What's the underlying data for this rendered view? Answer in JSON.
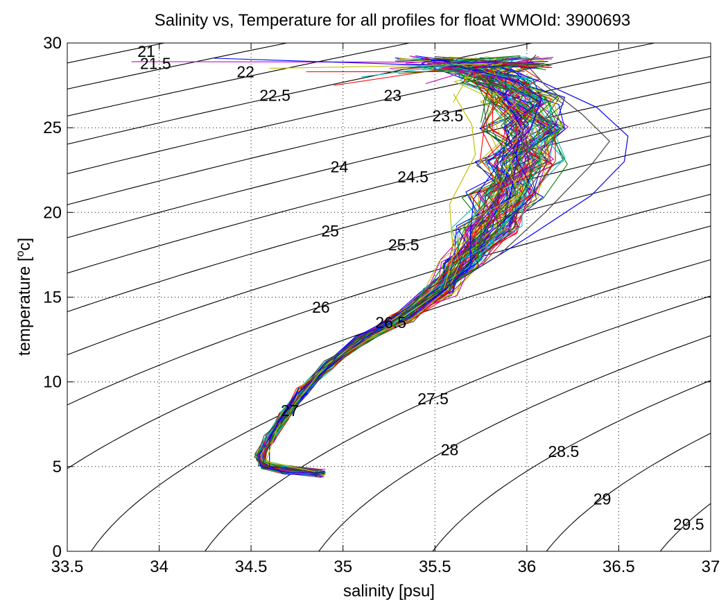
{
  "chart_data": {
    "type": "line",
    "title": "Salinity vs, Temperature for all profiles for float WMOId: 3900693",
    "xlabel": "salinity [psu]",
    "ylabel": "temperature [",
    "ylabel_sup": "o",
    "ylabel_unit": "c]",
    "xlim": [
      33.5,
      37
    ],
    "ylim": [
      0,
      30
    ],
    "x_ticks": [
      33.5,
      34,
      34.5,
      35,
      35.5,
      36,
      36.5,
      37
    ],
    "x_tick_labels": [
      "33.5",
      "34",
      "34.5",
      "35",
      "35.5",
      "36",
      "36.5",
      "37"
    ],
    "y_ticks": [
      0,
      5,
      10,
      15,
      20,
      25,
      30
    ],
    "y_tick_labels": [
      "0",
      "5",
      "10",
      "15",
      "20",
      "25",
      "30"
    ],
    "grid": true,
    "grid_style": "dotted",
    "isopycnal_color": "#000000",
    "isopycnals": [
      {
        "label": "21",
        "sigma": 21,
        "label_s": 33.93,
        "label_t": 29.5
      },
      {
        "label": "21.5",
        "sigma": 21.5,
        "label_s": 33.98,
        "label_t": 28.8
      },
      {
        "label": "22",
        "sigma": 22,
        "label_s": 34.47,
        "label_t": 28.3
      },
      {
        "label": "22.5",
        "sigma": 22.5,
        "label_s": 34.63,
        "label_t": 26.9
      },
      {
        "label": "23",
        "sigma": 23,
        "label_s": 35.27,
        "label_t": 26.9
      },
      {
        "label": "23.5",
        "sigma": 23.5,
        "label_s": 35.57,
        "label_t": 25.7
      },
      {
        "label": "24",
        "sigma": 24,
        "label_s": 34.98,
        "label_t": 22.7
      },
      {
        "label": "24.5",
        "sigma": 24.5,
        "label_s": 35.38,
        "label_t": 22.1
      },
      {
        "label": "25",
        "sigma": 25,
        "label_s": 34.93,
        "label_t": 18.9
      },
      {
        "label": "25.5",
        "sigma": 25.5,
        "label_s": 35.33,
        "label_t": 18.1
      },
      {
        "label": "26",
        "sigma": 26,
        "label_s": 34.88,
        "label_t": 14.4
      },
      {
        "label": "26.5",
        "sigma": 26.5,
        "label_s": 35.26,
        "label_t": 13.5
      },
      {
        "label": "27",
        "sigma": 27,
        "label_s": 34.71,
        "label_t": 8.3
      },
      {
        "label": "27.5",
        "sigma": 27.5,
        "label_s": 35.49,
        "label_t": 9.0
      },
      {
        "label": "28",
        "sigma": 28,
        "label_s": 35.58,
        "label_t": 6.0
      },
      {
        "label": "28.5",
        "sigma": 28.5,
        "label_s": 36.2,
        "label_t": 5.9
      },
      {
        "label": "29",
        "sigma": 29,
        "label_s": 36.41,
        "label_t": 3.1
      },
      {
        "label": "29.5",
        "sigma": 29.5,
        "label_s": 36.88,
        "label_t": 1.6
      }
    ],
    "profile_colors": [
      "#0000ff",
      "#008000",
      "#ff0000",
      "#00bfbf",
      "#bf00bf",
      "#bfbf00",
      "#404040"
    ],
    "profile_count": 100,
    "profile_spine": [
      {
        "s": 34.88,
        "t": 4.6
      },
      {
        "s": 34.7,
        "t": 4.8
      },
      {
        "s": 34.57,
        "t": 5.1
      },
      {
        "s": 34.55,
        "t": 5.6
      },
      {
        "s": 34.6,
        "t": 6.6
      },
      {
        "s": 34.68,
        "t": 8.0
      },
      {
        "s": 34.78,
        "t": 9.5
      },
      {
        "s": 34.92,
        "t": 11.0
      },
      {
        "s": 35.1,
        "t": 12.5
      },
      {
        "s": 35.32,
        "t": 13.8
      },
      {
        "s": 35.52,
        "t": 15.3
      },
      {
        "s": 35.65,
        "t": 17.0
      },
      {
        "s": 35.78,
        "t": 19.0
      },
      {
        "s": 35.88,
        "t": 21.0
      },
      {
        "s": 35.97,
        "t": 23.0
      },
      {
        "s": 36.0,
        "t": 25.0
      },
      {
        "s": 35.97,
        "t": 26.6
      },
      {
        "s": 35.85,
        "t": 27.8
      },
      {
        "s": 35.7,
        "t": 28.6
      }
    ],
    "profile_tops": [
      {
        "s": 33.85,
        "t": 28.9,
        "color": "#bf00bf"
      },
      {
        "s": 34.3,
        "t": 29.1,
        "color": "#0000ff"
      },
      {
        "s": 34.6,
        "t": 28.5,
        "color": "#bfbf00"
      },
      {
        "s": 34.8,
        "t": 28.3,
        "color": "#ff0000"
      },
      {
        "s": 34.95,
        "t": 27.5,
        "color": "#ff0000"
      },
      {
        "s": 35.1,
        "t": 28.0,
        "color": "#00bfbf"
      },
      {
        "s": 35.3,
        "t": 28.2,
        "color": "#008000"
      },
      {
        "s": 35.45,
        "t": 27.6,
        "color": "#bf00bf"
      },
      {
        "s": 35.6,
        "t": 26.5,
        "color": "#bfbf00"
      },
      {
        "s": 35.5,
        "t": 29.2,
        "color": "#404040"
      },
      {
        "s": 35.75,
        "t": 25.3,
        "color": "#008000"
      },
      {
        "s": 35.85,
        "t": 28.9,
        "color": "#0000ff"
      }
    ],
    "profile_outliers": [
      {
        "color": "#0000ff",
        "points": [
          {
            "s": 34.9,
            "t": 4.6
          },
          {
            "s": 34.6,
            "t": 5.0
          },
          {
            "s": 34.6,
            "t": 6.6
          },
          {
            "s": 34.75,
            "t": 9.3
          },
          {
            "s": 35.12,
            "t": 12.6
          },
          {
            "s": 35.6,
            "t": 15.8
          },
          {
            "s": 36.0,
            "t": 18.5
          },
          {
            "s": 36.35,
            "t": 21.0
          },
          {
            "s": 36.53,
            "t": 23.0
          },
          {
            "s": 36.55,
            "t": 24.5
          },
          {
            "s": 36.38,
            "t": 26.2
          },
          {
            "s": 36.1,
            "t": 27.6
          },
          {
            "s": 35.85,
            "t": 28.6
          }
        ]
      },
      {
        "color": "#bfbf00",
        "points": [
          {
            "s": 34.85,
            "t": 4.7
          },
          {
            "s": 34.58,
            "t": 5.3
          },
          {
            "s": 34.65,
            "t": 7.5
          },
          {
            "s": 34.9,
            "t": 10.9
          },
          {
            "s": 35.3,
            "t": 13.6
          },
          {
            "s": 35.55,
            "t": 15.5
          },
          {
            "s": 35.6,
            "t": 17.5
          },
          {
            "s": 35.58,
            "t": 20.5
          },
          {
            "s": 35.72,
            "t": 23.4
          },
          {
            "s": 35.7,
            "t": 25.2
          },
          {
            "s": 35.6,
            "t": 27.0
          }
        ]
      },
      {
        "color": "#404040",
        "points": [
          {
            "s": 34.88,
            "t": 4.6
          },
          {
            "s": 34.56,
            "t": 5.1
          },
          {
            "s": 34.62,
            "t": 7.0
          },
          {
            "s": 34.85,
            "t": 10.5
          },
          {
            "s": 35.3,
            "t": 13.8
          },
          {
            "s": 35.85,
            "t": 17.5
          },
          {
            "s": 36.1,
            "t": 20.0
          },
          {
            "s": 36.35,
            "t": 22.8
          },
          {
            "s": 36.45,
            "t": 24.2
          },
          {
            "s": 36.3,
            "t": 25.8
          },
          {
            "s": 36.1,
            "t": 27.5
          },
          {
            "s": 36.0,
            "t": 28.7
          },
          {
            "s": 36.05,
            "t": 29.3
          }
        ]
      }
    ]
  }
}
